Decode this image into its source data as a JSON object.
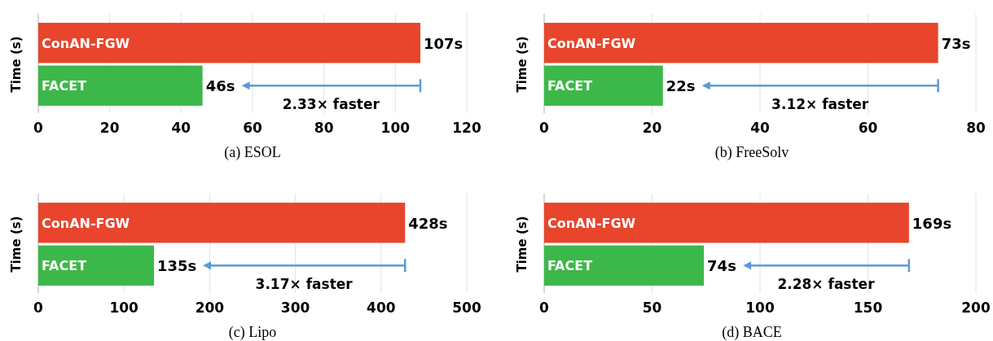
{
  "chart_data": [
    {
      "type": "bar",
      "orientation": "horizontal",
      "title": "(a) ESOL",
      "ylabel": "Time (s)",
      "categories": [
        "ConAN-FGW",
        "FACET"
      ],
      "values": [
        107,
        46
      ],
      "colors": [
        "#e8452c",
        "#3cb84a"
      ],
      "value_labels": [
        "107s",
        "46s"
      ],
      "xlim": [
        0,
        120
      ],
      "xticks": [
        0,
        20,
        40,
        60,
        80,
        100,
        120
      ],
      "grid": "x",
      "tick_labels": "x",
      "annotations": [
        "2.33× faster"
      ]
    },
    {
      "type": "bar",
      "orientation": "horizontal",
      "title": "(b) FreeSolv",
      "ylabel": "Time (s)",
      "categories": [
        "ConAN-FGW",
        "FACET"
      ],
      "values": [
        73,
        22
      ],
      "colors": [
        "#e8452c",
        "#3cb84a"
      ],
      "value_labels": [
        "73s",
        "22s"
      ],
      "xlim": [
        0,
        80
      ],
      "xticks": [
        0,
        20,
        40,
        60,
        80
      ],
      "grid": "x",
      "tick_labels": "x",
      "annotations": [
        "3.12× faster"
      ]
    },
    {
      "type": "bar",
      "orientation": "horizontal",
      "title": "(c) Lipo",
      "ylabel": "Time (s)",
      "categories": [
        "ConAN-FGW",
        "FACET"
      ],
      "values": [
        428,
        135
      ],
      "colors": [
        "#e8452c",
        "#3cb84a"
      ],
      "value_labels": [
        "428s",
        "135s"
      ],
      "xlim": [
        0,
        500
      ],
      "xticks": [
        0,
        100,
        200,
        300,
        400,
        500
      ],
      "grid": "x",
      "tick_labels": "x",
      "annotations": [
        "3.17× faster"
      ]
    },
    {
      "type": "bar",
      "orientation": "horizontal",
      "title": "(d) BACE",
      "ylabel": "Time (s)",
      "categories": [
        "ConAN-FGW",
        "FACET"
      ],
      "values": [
        169,
        74
      ],
      "colors": [
        "#e8452c",
        "#3cb84a"
      ],
      "value_labels": [
        "169s",
        "74s"
      ],
      "xlim": [
        0,
        200
      ],
      "xticks": [
        0,
        50,
        100,
        150,
        200
      ],
      "grid": "x",
      "tick_labels": "x",
      "annotations": [
        "2.28× faster"
      ]
    }
  ]
}
